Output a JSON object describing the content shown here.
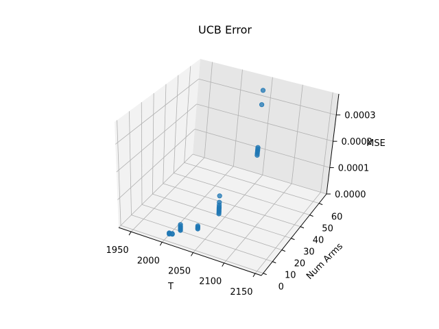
{
  "chart_data": {
    "type": "scatter",
    "projection": "3d",
    "title": "UCB Error",
    "xlabel": "T",
    "ylabel": "Num Arms",
    "zlabel": "MSE",
    "xlim": [
      1930,
      2160
    ],
    "ylim": [
      -2,
      68
    ],
    "zlim": [
      0,
      0.00038
    ],
    "xticks": [
      "1950",
      "2000",
      "2050",
      "2100",
      "2150"
    ],
    "xtick_values": [
      1950,
      2000,
      2050,
      2100,
      2150
    ],
    "yticks": [
      "0",
      "10",
      "20",
      "30",
      "40",
      "50",
      "60"
    ],
    "ytick_values": [
      0,
      10,
      20,
      30,
      40,
      50,
      60
    ],
    "zticks": [
      "0.0000",
      "0.0001",
      "0.0002",
      "0.0003"
    ],
    "ztick_values": [
      0,
      0.0001,
      0.0002,
      0.0003
    ],
    "grid": true,
    "marker_color": "#1f77b4",
    "points": [
      {
        "x": 2000,
        "y": 5,
        "z": 2e-06
      },
      {
        "x": 2000,
        "y": 5,
        "z": 4e-06
      },
      {
        "x": 2000,
        "y": 5,
        "z": 6e-06
      },
      {
        "x": 2005,
        "y": 5,
        "z": 5e-06
      },
      {
        "x": 2005,
        "y": 5,
        "z": 7e-06
      },
      {
        "x": 2010,
        "y": 10,
        "z": 3e-06
      },
      {
        "x": 2010,
        "y": 10,
        "z": 6e-06
      },
      {
        "x": 2010,
        "y": 10,
        "z": 1e-05
      },
      {
        "x": 2010,
        "y": 10,
        "z": 1.4e-05
      },
      {
        "x": 2010,
        "y": 10,
        "z": 1.8e-05
      },
      {
        "x": 2010,
        "y": 10,
        "z": 2.4e-05
      },
      {
        "x": 2030,
        "y": 15,
        "z": 3e-06
      },
      {
        "x": 2030,
        "y": 15,
        "z": 6e-06
      },
      {
        "x": 2030,
        "y": 15,
        "z": 1e-05
      },
      {
        "x": 2030,
        "y": 15,
        "z": 1.4e-05
      },
      {
        "x": 2040,
        "y": 30,
        "z": 5e-06
      },
      {
        "x": 2040,
        "y": 30,
        "z": 1e-05
      },
      {
        "x": 2040,
        "y": 30,
        "z": 1.5e-05
      },
      {
        "x": 2040,
        "y": 30,
        "z": 2e-05
      },
      {
        "x": 2040,
        "y": 30,
        "z": 2.5e-05
      },
      {
        "x": 2040,
        "y": 30,
        "z": 3e-05
      },
      {
        "x": 2040,
        "y": 30,
        "z": 3.8e-05
      },
      {
        "x": 2040,
        "y": 30,
        "z": 4.8e-05
      },
      {
        "x": 2040,
        "y": 30,
        "z": 7.2e-05
      },
      {
        "x": 2050,
        "y": 60,
        "z": 0.00011
      },
      {
        "x": 2050,
        "y": 60,
        "z": 0.000116
      },
      {
        "x": 2050,
        "y": 60,
        "z": 0.000122
      },
      {
        "x": 2050,
        "y": 60,
        "z": 0.000128
      },
      {
        "x": 2050,
        "y": 60,
        "z": 0.000134
      },
      {
        "x": 2050,
        "y": 60,
        "z": 0.00014
      },
      {
        "x": 2050,
        "y": 60,
        "z": 0.000305
      },
      {
        "x": 2050,
        "y": 60,
        "z": 0.00036
      }
    ]
  }
}
